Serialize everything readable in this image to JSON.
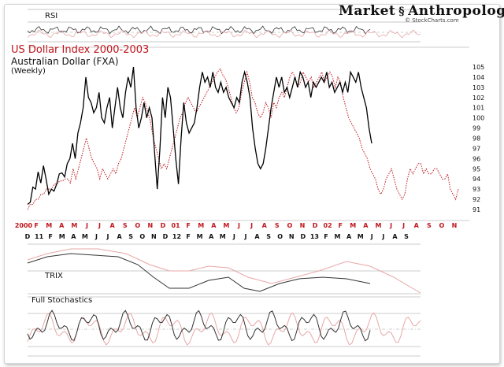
{
  "header": {
    "brand_left": "Market",
    "brand_right": "Anthropology",
    "site": "© StockCharts.com",
    "title": "US Dollar Index 2000-2003",
    "subtitle": "Australian Dollar (FXA)",
    "frequency": "(Weekly)"
  },
  "panels": {
    "rsi_label": "RSI",
    "trix_label": "TRIX",
    "stoch_label": "Full Stochastics"
  },
  "colors": {
    "price_line": "#000000",
    "overlay_line": "#c0141b",
    "secondary_indicator": "#e8a7a7",
    "gridline": "#9a9a9a",
    "month_labels_red": "#c0141b"
  },
  "chart_data": {
    "type": "line",
    "title": "US Dollar Index 2000-2003",
    "subtitle": "Australian Dollar (FXA)",
    "frequency": "(Weekly)",
    "y_ticks": [
      105,
      104,
      103,
      102,
      101,
      100,
      99,
      98,
      97,
      96,
      95,
      94,
      93,
      92,
      91
    ],
    "x_axis_top": [
      "2000",
      "F",
      "M",
      "A",
      "M",
      "J",
      "J",
      "A",
      "S",
      "O",
      "N",
      "D",
      "01",
      "F",
      "M",
      "A",
      "M",
      "J",
      "J",
      "A",
      "S",
      "O",
      "N",
      "D",
      "02",
      "F",
      "M",
      "A",
      "M",
      "J",
      "J",
      "A",
      "S",
      "O",
      "N"
    ],
    "x_axis_bottom": [
      "D",
      "11",
      "F",
      "M",
      "A",
      "M",
      "J",
      "J",
      "A",
      "S",
      "O",
      "N",
      "D",
      "12",
      "F",
      "M",
      "A",
      "M",
      "J",
      "J",
      "A",
      "S",
      "O",
      "N",
      "D",
      "13",
      "F",
      "M",
      "A",
      "M",
      "J",
      "J",
      "A",
      "S"
    ],
    "series": [
      {
        "values": [
          91.5,
          91.7,
          93.2,
          93.0,
          94.7,
          93.6,
          95.3,
          94.0,
          92.5,
          93.0,
          92.8,
          93.5,
          94.5,
          94.6,
          94.2,
          95.5,
          96.0,
          97.5,
          96.0,
          98.5,
          99.5,
          101.0,
          104.0,
          102.0,
          101.5,
          100.5,
          101.0,
          102.5,
          100.0,
          99.5,
          101.0,
          102.0,
          99.0,
          101.0,
          103.0,
          101.0,
          100.0,
          102.5,
          104.0,
          103.0,
          105.0,
          101.0,
          99.0,
          100.0,
          101.5,
          100.0,
          101.0,
          100.0,
          96.5,
          93.0,
          97.0,
          102.0,
          100.0,
          103.0,
          102.0,
          99.0,
          96.0,
          93.5,
          98.0,
          101.5,
          99.5,
          98.5,
          99.0,
          99.5,
          101.0,
          103.0,
          104.5,
          103.5,
          104.0,
          103.0,
          104.5,
          103.0,
          102.5,
          103.5,
          102.5,
          103.0,
          102.0,
          101.5,
          101.0,
          102.0,
          101.5,
          103.5,
          104.5,
          103.5,
          102.0,
          99.0,
          97.0,
          95.5,
          95.0,
          95.5,
          97.0,
          99.0,
          101.0,
          102.5,
          104.0,
          103.0,
          104.0,
          102.5,
          103.0,
          102.0,
          103.0,
          104.0,
          103.0,
          104.5,
          104.0,
          103.0,
          103.5,
          102.0,
          103.5,
          103.0,
          103.5,
          104.0,
          103.5,
          104.5,
          103.0,
          103.5,
          102.5,
          103.0,
          103.5,
          102.5,
          103.5,
          102.5,
          104.5,
          104.0,
          103.5,
          104.5,
          103.0,
          102.0,
          101.0,
          99.0,
          97.5
        ]
      },
      {
        "values": [
          91.0,
          91.5,
          91.5,
          92.0,
          92.0,
          92.5,
          92.5,
          93.0,
          93.0,
          93.0,
          93.5,
          93.5,
          93.8,
          93.8,
          94.0,
          94.0,
          93.6,
          95.0,
          94.0,
          95.0,
          96.0,
          97.0,
          98.0,
          97.0,
          96.0,
          95.5,
          95.0,
          94.0,
          95.0,
          94.5,
          94.0,
          94.5,
          95.0,
          94.5,
          95.5,
          96.0,
          97.0,
          98.0,
          99.0,
          100.0,
          101.0,
          100.0,
          101.0,
          102.0,
          101.5,
          100.5,
          99.5,
          98.0,
          97.0,
          96.0,
          95.0,
          95.5,
          95.0,
          96.0,
          97.0,
          98.0,
          99.0,
          100.0,
          100.5,
          101.5,
          102.0,
          101.5,
          101.0,
          100.5,
          101.0,
          101.5,
          102.0,
          102.5,
          103.0,
          103.5,
          104.0,
          104.5,
          104.8,
          104.2,
          103.8,
          103.0,
          102.0,
          101.0,
          100.5,
          101.0,
          102.5,
          103.5,
          104.5,
          103.5,
          102.0,
          101.5,
          100.5,
          100.0,
          100.5,
          101.5,
          101.0,
          100.0,
          101.5,
          101.0,
          102.0,
          102.5,
          102.0,
          103.0,
          104.0,
          104.5,
          104.0,
          103.0,
          103.5,
          104.5,
          104.0,
          103.5,
          104.0,
          103.0,
          103.5,
          104.0,
          104.5,
          103.5,
          104.0,
          104.5,
          104.0,
          103.0,
          104.0,
          103.5,
          102.0,
          101.0,
          100.0,
          99.5,
          99.0,
          98.5,
          98.0,
          97.0,
          96.5,
          96.0,
          95.0,
          94.5,
          94.0,
          93.0,
          92.5,
          93.0,
          94.0,
          94.5,
          95.0,
          94.0,
          93.0,
          92.5,
          92.0,
          92.5,
          94.0,
          95.0,
          94.5,
          95.0,
          95.5,
          95.5,
          94.5,
          95.0,
          94.5,
          94.5,
          95.0,
          95.0,
          94.5,
          94.0,
          94.0,
          94.5,
          93.0,
          92.5,
          92.0,
          93.0
        ]
      }
    ]
  }
}
